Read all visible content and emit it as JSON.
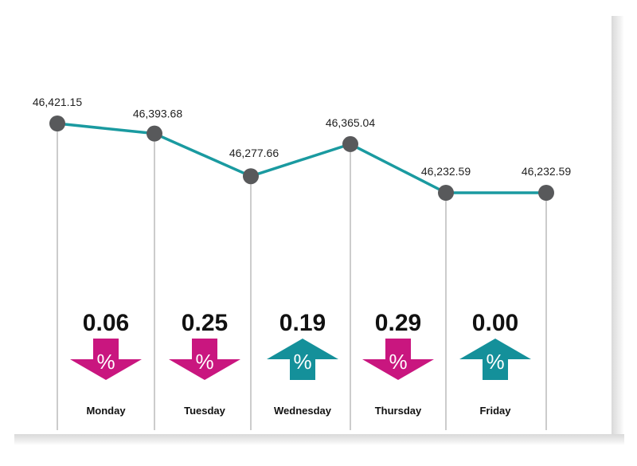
{
  "chart_data": {
    "type": "line",
    "categories": [
      "Monday",
      "Tuesday",
      "Wednesday",
      "Thursday",
      "Friday",
      ""
    ],
    "values": [
      46421.15,
      46393.68,
      46277.66,
      46365.04,
      46232.59,
      46232.59
    ],
    "value_labels": [
      "46,421.15",
      "46,393.68",
      "46,277.66",
      "46,365.04",
      "46,232.59",
      "46,232.59"
    ],
    "ylim": [
      46232.59,
      46421.15
    ],
    "grid": false,
    "daily_change": [
      {
        "day": "Monday",
        "percent": "0.06",
        "direction": "down"
      },
      {
        "day": "Tuesday",
        "percent": "0.25",
        "direction": "down"
      },
      {
        "day": "Wednesday",
        "percent": "0.19",
        "direction": "up"
      },
      {
        "day": "Thursday",
        "percent": "0.29",
        "direction": "down"
      },
      {
        "day": "Friday",
        "percent": "0.00",
        "direction": "up"
      }
    ],
    "percent_symbol": "%",
    "colors": {
      "line": "#1a9aa0",
      "marker": "#58595b",
      "down": "#c9167f",
      "up": "#14909a",
      "guide": "#9a9a9a"
    }
  }
}
